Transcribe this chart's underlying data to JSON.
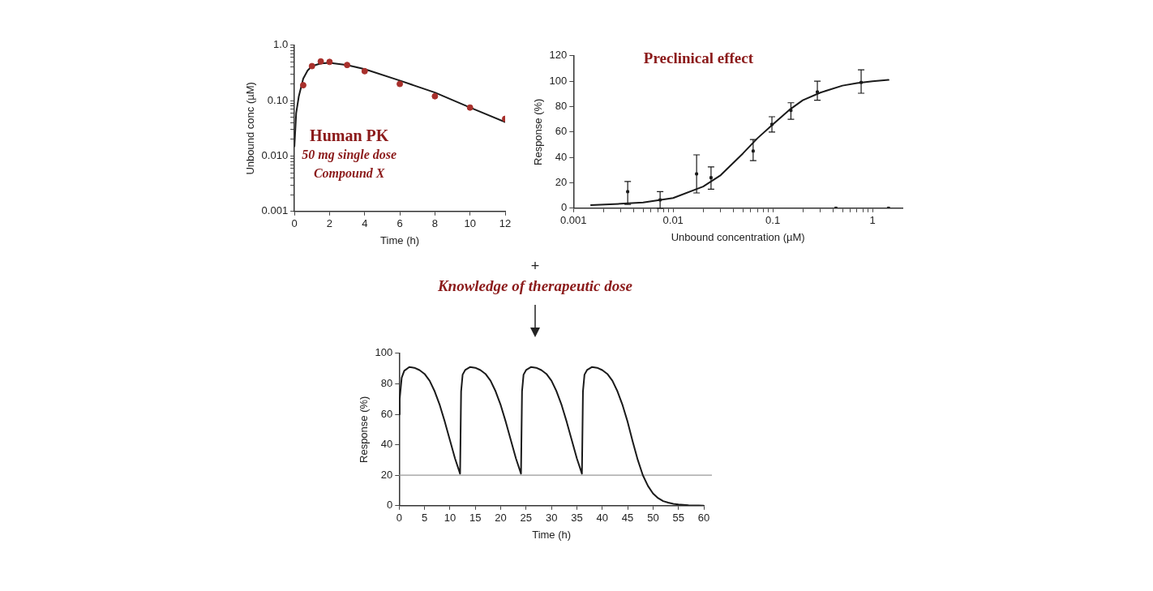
{
  "chart_data": [
    {
      "type": "scatter",
      "xlabel": "Time (h)",
      "ylabel": "Unbound conc (µM)",
      "log": "y",
      "xlim": [
        0,
        12
      ],
      "xticks": [
        0,
        2,
        4,
        6,
        8,
        10,
        12
      ],
      "ylim": [
        0.001,
        1
      ],
      "yticks": [
        {
          "value": 0.001,
          "label": "0.001"
        },
        {
          "value": 0.002,
          "label": null
        },
        {
          "value": 0.003,
          "label": null
        },
        {
          "value": 0.004,
          "label": null
        },
        {
          "value": 0.005,
          "label": null
        },
        {
          "value": 0.006,
          "label": null
        },
        {
          "value": 0.007,
          "label": null
        },
        {
          "value": 0.008,
          "label": null
        },
        {
          "value": 0.009,
          "label": null
        },
        {
          "value": 0.01,
          "label": "0.010"
        },
        {
          "value": 0.02,
          "label": null
        },
        {
          "value": 0.03,
          "label": null
        },
        {
          "value": 0.04,
          "label": null
        },
        {
          "value": 0.05,
          "label": null
        },
        {
          "value": 0.06,
          "label": null
        },
        {
          "value": 0.07,
          "label": null
        },
        {
          "value": 0.08,
          "label": null
        },
        {
          "value": 0.09,
          "label": null
        },
        {
          "value": 0.1,
          "label": "0.10"
        },
        {
          "value": 0.2,
          "label": null
        },
        {
          "value": 0.3,
          "label": null
        },
        {
          "value": 0.4,
          "label": null
        },
        {
          "value": 0.5,
          "label": null
        },
        {
          "value": 0.6,
          "label": null
        },
        {
          "value": 0.7,
          "label": null
        },
        {
          "value": 0.8,
          "label": null
        },
        {
          "value": 0.9,
          "label": null
        },
        {
          "value": 1,
          "label": "1.0"
        }
      ],
      "annotations": [
        "Human PK",
        "50 mg single dose",
        "Compound X"
      ],
      "series": [
        {
          "marker": "circle",
          "color": "#a8302c",
          "x": [
            0.5,
            1,
            1.5,
            2,
            3,
            4,
            6,
            8,
            10,
            12
          ],
          "values": [
            0.19,
            0.42,
            0.51,
            0.5,
            0.44,
            0.34,
            0.2,
            0.12,
            0.075,
            0.047
          ]
        },
        {
          "type": "line",
          "marker": "none",
          "color": "#1a1a1a",
          "x": [
            0,
            0.1,
            0.25,
            0.5,
            0.75,
            1,
            1.5,
            2,
            3,
            4,
            6,
            8,
            10,
            12
          ],
          "values": [
            0.015,
            0.06,
            0.12,
            0.25,
            0.35,
            0.42,
            0.47,
            0.48,
            0.44,
            0.37,
            0.23,
            0.14,
            0.075,
            0.041
          ]
        }
      ]
    },
    {
      "type": "scatter",
      "title": "Preclinical effect",
      "xlabel": "Unbound concentration (µM)",
      "ylabel": "Response (%)",
      "log": "x",
      "xlim": [
        0.001,
        2
      ],
      "xticks": [
        {
          "value": 0.001,
          "label": "0.001"
        },
        {
          "value": 0.002,
          "label": null
        },
        {
          "value": 0.003,
          "label": null
        },
        {
          "value": 0.004,
          "label": null
        },
        {
          "value": 0.005,
          "label": null
        },
        {
          "value": 0.006,
          "label": null
        },
        {
          "value": 0.007,
          "label": null
        },
        {
          "value": 0.008,
          "label": null
        },
        {
          "value": 0.009,
          "label": null
        },
        {
          "value": 0.01,
          "label": "0.01"
        },
        {
          "value": 0.02,
          "label": null
        },
        {
          "value": 0.03,
          "label": null
        },
        {
          "value": 0.04,
          "label": null
        },
        {
          "value": 0.05,
          "label": null
        },
        {
          "value": 0.06,
          "label": null
        },
        {
          "value": 0.07,
          "label": null
        },
        {
          "value": 0.08,
          "label": null
        },
        {
          "value": 0.09,
          "label": null
        },
        {
          "value": 0.1,
          "label": "0.1"
        },
        {
          "value": 0.2,
          "label": null
        },
        {
          "value": 0.3,
          "label": null
        },
        {
          "value": 0.4,
          "label": null
        },
        {
          "value": 0.5,
          "label": null
        },
        {
          "value": 0.6,
          "label": null
        },
        {
          "value": 0.7,
          "label": null
        },
        {
          "value": 0.8,
          "label": null
        },
        {
          "value": 0.9,
          "label": null
        },
        {
          "value": 1,
          "label": "1"
        }
      ],
      "ylim": [
        0,
        120
      ],
      "yticks": [
        0,
        20,
        40,
        60,
        80,
        100,
        120
      ],
      "series": [
        {
          "marker": "square",
          "color": "#1a1a1a",
          "x": [
            0.0035,
            0.0074,
            0.0172,
            0.024,
            0.0635,
            0.098,
            0.152,
            0.28,
            0.77,
            0.43,
            1.45
          ],
          "values": [
            13,
            6.5,
            27,
            24,
            45,
            66,
            77,
            91.5,
            99,
            0,
            0
          ],
          "errors": [
            [
              3,
              21
            ],
            [
              0,
              13
            ],
            [
              12,
              42
            ],
            [
              15,
              32.5
            ],
            [
              37.5,
              54
            ],
            [
              60,
              72
            ],
            [
              70,
              83
            ],
            [
              85,
              100
            ],
            [
              90.5,
              109
            ],
            null,
            null
          ]
        },
        {
          "type": "line",
          "marker": "none",
          "color": "#1a1a1a",
          "x": [
            0.0015,
            0.003,
            0.005,
            0.01,
            0.02,
            0.03,
            0.05,
            0.07,
            0.1,
            0.15,
            0.2,
            0.3,
            0.5,
            0.7,
            1,
            1.45
          ],
          "values": [
            2.5,
            3.5,
            4.5,
            8,
            17,
            26,
            43,
            55,
            66,
            78,
            85,
            91,
            96.5,
            98.5,
            100,
            101
          ]
        }
      ]
    },
    {
      "type": "line",
      "xlabel": "Time (h)",
      "ylabel": "Response (%)",
      "xlim": [
        0,
        60
      ],
      "xticks": [
        0,
        5,
        10,
        15,
        20,
        25,
        30,
        35,
        40,
        45,
        50,
        55,
        60
      ],
      "ylim": [
        0,
        100
      ],
      "yticks": [
        0,
        20,
        40,
        60,
        80,
        100
      ],
      "annotations": [
        "+",
        "Knowledge of therapeutic dose"
      ],
      "ref_lines": [
        {
          "axis": "y",
          "value": 20,
          "color": "#999999"
        }
      ],
      "series": [
        {
          "marker": "none",
          "color": "#1a1a1a",
          "x": [
            0,
            0.1,
            0.5,
            1,
            2,
            3,
            4,
            5,
            6,
            7,
            8,
            9,
            10,
            11,
            12,
            12.2,
            12.5,
            13,
            14,
            15,
            16,
            17,
            18,
            19,
            20,
            21,
            22,
            23,
            24,
            24.2,
            24.5,
            25,
            26,
            27,
            28,
            29,
            30,
            31,
            32,
            33,
            34,
            35,
            36,
            36.2,
            36.5,
            37,
            38,
            39,
            40,
            41,
            42,
            43,
            44,
            45,
            46,
            47,
            48,
            49,
            50,
            51,
            52,
            53,
            54,
            55,
            57,
            59,
            60
          ],
          "values": [
            60,
            70,
            84,
            88.5,
            91,
            90.5,
            89,
            86.5,
            82,
            75,
            66,
            55,
            43,
            31,
            21,
            75,
            86,
            89,
            91,
            90.5,
            89,
            86.5,
            82,
            75,
            66,
            55,
            43,
            31,
            21,
            75,
            86,
            89,
            91,
            90.5,
            89,
            86.5,
            82,
            75,
            66,
            55,
            43,
            31,
            21,
            75,
            86,
            89,
            91,
            90.5,
            89,
            86.5,
            82,
            75,
            66,
            55,
            42,
            30,
            20,
            13,
            8,
            5,
            3,
            2,
            1.2,
            0.8,
            0.3,
            0.1,
            0
          ]
        }
      ]
    }
  ]
}
